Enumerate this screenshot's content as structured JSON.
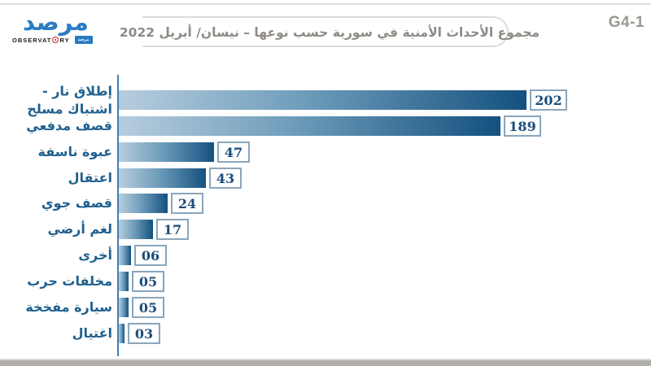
{
  "header": {
    "code_label": "G4-1",
    "title": "مجموع الأحداث الأمنية في سورية حسب نوعها – نيسان/ أبريل 2022"
  },
  "logo": {
    "wordmark_arabic": "مرصد",
    "latin_before": "OBSERVAT",
    "latin_after": "RY",
    "badge_arabic": "مرصد",
    "brand_blue": "#2a7cc2",
    "brand_red": "#c4232e"
  },
  "chart_data": {
    "type": "bar",
    "orientation": "horizontal",
    "title": "مجموع الأحداث الأمنية في سورية حسب نوعها – نيسان/ أبريل 2022",
    "categories": [
      "إطلاق نار - اشتباك مسلح",
      "قصف مدفعي",
      "عبوة ناسفة",
      "اعتقال",
      "قصف جوي",
      "لغم أرضي",
      "أخرى",
      "مخلفات حرب",
      "سيارة مفخخة",
      "اغتيال"
    ],
    "label_lines": [
      [
        "إطلاق نار -",
        "اشتباك مسلح"
      ],
      [
        "قصف مدفعي"
      ],
      [
        "عبوة ناسفة"
      ],
      [
        "اعتقال"
      ],
      [
        "قصف جوي"
      ],
      [
        "لغم أرضي"
      ],
      [
        "أخرى"
      ],
      [
        "مخلفات حرب"
      ],
      [
        "سيارة مفخخة"
      ],
      [
        "اغتيال"
      ]
    ],
    "values": [
      202,
      189,
      47,
      43,
      24,
      17,
      6,
      5,
      5,
      3
    ],
    "value_labels": [
      "202",
      "189",
      "47",
      "43",
      "24",
      "17",
      "06",
      "05",
      "05",
      "03"
    ],
    "xlim": [
      0,
      210
    ],
    "grid": false,
    "legend": false,
    "bar_gradient": [
      "#b7cdde",
      "#6f9dbb",
      "#14517f"
    ],
    "axis_color": "#4080b5",
    "label_color": "#20618f",
    "value_color": "#1b4c7a",
    "value_box_border": "#8aa6bc"
  }
}
